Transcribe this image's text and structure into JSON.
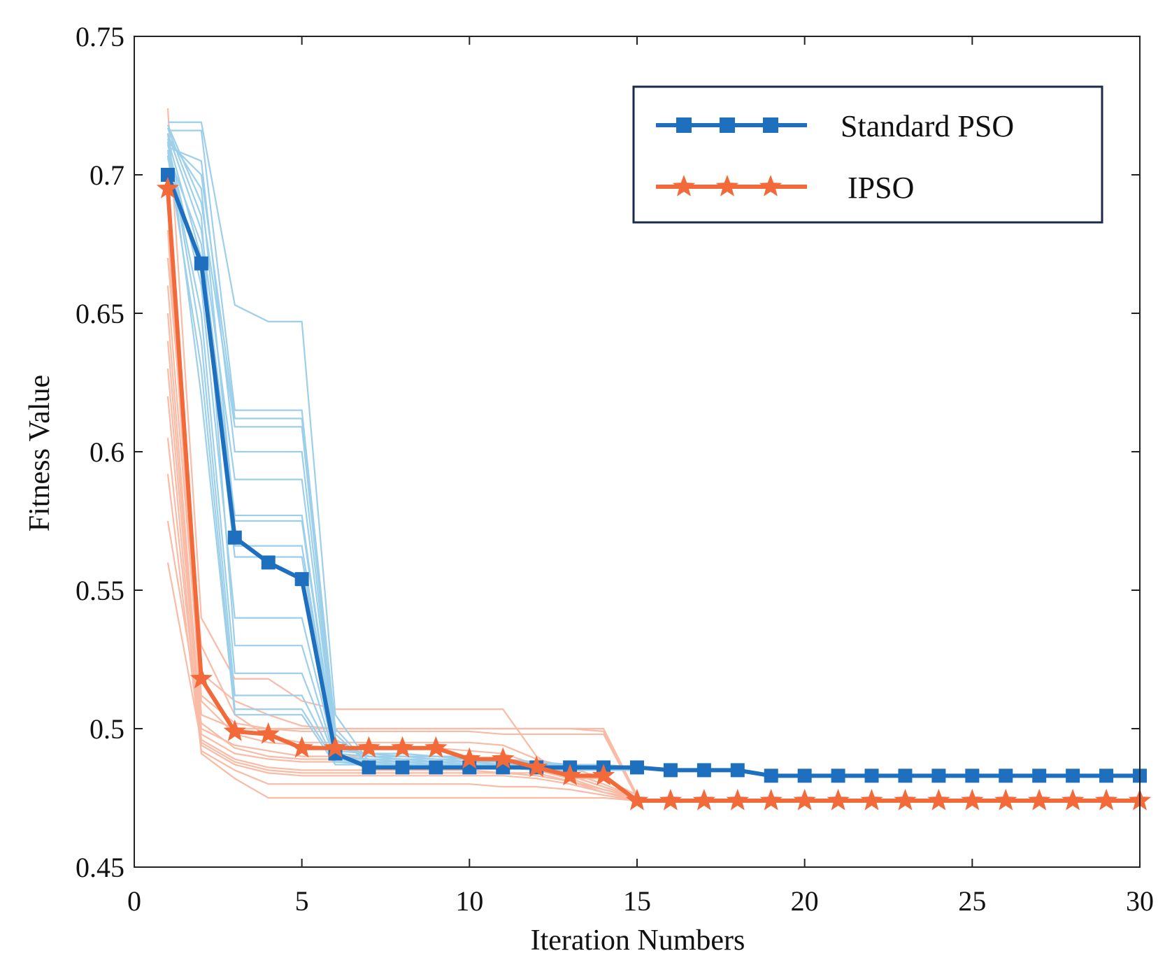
{
  "chart_data": {
    "type": "line",
    "title": "",
    "xlabel": "Iteration Numbers",
    "ylabel": "Fitness Value",
    "xlim": [
      0,
      30
    ],
    "ylim": [
      0.45,
      0.75
    ],
    "xticks": [
      "0",
      "5",
      "10",
      "15",
      "20",
      "25",
      "30"
    ],
    "xtick_values": [
      0,
      5,
      10,
      15,
      20,
      25,
      30
    ],
    "yticks": [
      "0.45",
      "0.5",
      "0.55",
      "0.6",
      "0.65",
      "0.7",
      "0.75"
    ],
    "ytick_values": [
      0.45,
      0.5,
      0.55,
      0.6,
      0.65,
      0.7,
      0.75
    ],
    "grid": false,
    "legend_position": "top-right",
    "x": [
      1,
      2,
      3,
      4,
      5,
      6,
      7,
      8,
      9,
      10,
      11,
      12,
      13,
      14,
      15,
      16,
      17,
      18,
      19,
      20,
      21,
      22,
      23,
      24,
      25,
      26,
      27,
      28,
      29,
      30
    ],
    "series": [
      {
        "name": "Standard PSO",
        "color": "#1f6fbf",
        "marker": "square",
        "values": [
          0.7,
          0.668,
          0.569,
          0.56,
          0.554,
          0.491,
          0.486,
          0.486,
          0.486,
          0.486,
          0.486,
          0.486,
          0.486,
          0.486,
          0.486,
          0.485,
          0.485,
          0.485,
          0.483,
          0.483,
          0.483,
          0.483,
          0.483,
          0.483,
          0.483,
          0.483,
          0.483,
          0.483,
          0.483,
          0.483
        ]
      },
      {
        "name": "IPSO",
        "color": "#f26a3a",
        "marker": "star",
        "values": [
          0.695,
          0.518,
          0.499,
          0.498,
          0.493,
          0.493,
          0.493,
          0.493,
          0.493,
          0.489,
          0.489,
          0.486,
          0.483,
          0.483,
          0.474,
          0.474,
          0.474,
          0.474,
          0.474,
          0.474,
          0.474,
          0.474,
          0.474,
          0.474,
          0.474,
          0.474,
          0.474,
          0.474,
          0.474,
          0.474
        ]
      }
    ],
    "background_runs": {
      "Standard PSO": {
        "color": "#9ccfe9",
        "runs": [
          [
            0.719,
            0.719,
            0.653,
            0.647,
            0.647,
            0.505,
            0.488,
            0.488,
            0.488,
            0.488,
            0.488,
            0.487,
            0.487,
            0.486,
            0.486
          ],
          [
            0.716,
            0.716,
            0.615,
            0.615,
            0.615,
            0.5,
            0.487,
            0.487,
            0.487,
            0.487,
            0.487,
            0.486,
            0.486,
            0.485,
            0.485
          ],
          [
            0.712,
            0.7,
            0.612,
            0.612,
            0.612,
            0.498,
            0.487,
            0.487,
            0.487,
            0.487,
            0.486,
            0.486,
            0.485,
            0.485,
            0.485
          ],
          [
            0.718,
            0.69,
            0.609,
            0.609,
            0.609,
            0.496,
            0.49,
            0.49,
            0.49,
            0.49,
            0.488,
            0.488,
            0.487,
            0.487,
            0.486
          ],
          [
            0.71,
            0.705,
            0.6,
            0.6,
            0.6,
            0.494,
            0.49,
            0.49,
            0.49,
            0.489,
            0.489,
            0.487,
            0.487,
            0.486,
            0.486
          ],
          [
            0.715,
            0.68,
            0.59,
            0.59,
            0.59,
            0.493,
            0.491,
            0.491,
            0.49,
            0.49,
            0.488,
            0.488,
            0.487,
            0.486,
            0.486
          ],
          [
            0.708,
            0.675,
            0.577,
            0.577,
            0.577,
            0.492,
            0.491,
            0.49,
            0.49,
            0.489,
            0.489,
            0.488,
            0.487,
            0.486,
            0.486
          ],
          [
            0.714,
            0.695,
            0.575,
            0.575,
            0.575,
            0.491,
            0.49,
            0.49,
            0.489,
            0.489,
            0.488,
            0.487,
            0.487,
            0.486,
            0.485
          ],
          [
            0.706,
            0.665,
            0.566,
            0.566,
            0.566,
            0.491,
            0.49,
            0.489,
            0.489,
            0.488,
            0.488,
            0.487,
            0.486,
            0.486,
            0.485
          ],
          [
            0.713,
            0.67,
            0.562,
            0.562,
            0.562,
            0.49,
            0.489,
            0.489,
            0.488,
            0.488,
            0.487,
            0.487,
            0.486,
            0.486,
            0.485
          ],
          [
            0.711,
            0.66,
            0.54,
            0.54,
            0.54,
            0.49,
            0.489,
            0.489,
            0.488,
            0.488,
            0.487,
            0.486,
            0.486,
            0.485,
            0.485
          ],
          [
            0.717,
            0.685,
            0.53,
            0.53,
            0.53,
            0.489,
            0.489,
            0.488,
            0.488,
            0.487,
            0.487,
            0.486,
            0.486,
            0.485,
            0.485
          ],
          [
            0.709,
            0.65,
            0.52,
            0.52,
            0.52,
            0.489,
            0.488,
            0.488,
            0.487,
            0.487,
            0.486,
            0.486,
            0.485,
            0.485,
            0.485
          ],
          [
            0.712,
            0.64,
            0.512,
            0.512,
            0.512,
            0.488,
            0.488,
            0.487,
            0.487,
            0.487,
            0.486,
            0.486,
            0.485,
            0.485,
            0.485
          ],
          [
            0.707,
            0.63,
            0.507,
            0.507,
            0.507,
            0.488,
            0.487,
            0.487,
            0.487,
            0.486,
            0.486,
            0.486,
            0.485,
            0.485,
            0.485
          ],
          [
            0.715,
            0.62,
            0.505,
            0.505,
            0.505,
            0.487,
            0.487,
            0.487,
            0.486,
            0.486,
            0.486,
            0.485,
            0.485,
            0.485,
            0.485
          ]
        ]
      },
      "IPSO": {
        "color": "#f9bba6",
        "runs": [
          [
            0.724,
            0.54,
            0.518,
            0.518,
            0.51,
            0.507,
            0.507,
            0.507,
            0.507,
            0.507,
            0.507,
            0.49,
            0.482,
            0.482,
            0.476
          ],
          [
            0.7,
            0.52,
            0.51,
            0.505,
            0.501,
            0.5,
            0.5,
            0.5,
            0.5,
            0.5,
            0.5,
            0.5,
            0.5,
            0.5,
            0.476
          ],
          [
            0.69,
            0.512,
            0.502,
            0.5,
            0.5,
            0.5,
            0.5,
            0.5,
            0.5,
            0.5,
            0.5,
            0.5,
            0.5,
            0.499,
            0.475
          ],
          [
            0.68,
            0.505,
            0.5,
            0.5,
            0.499,
            0.499,
            0.499,
            0.499,
            0.499,
            0.499,
            0.498,
            0.498,
            0.498,
            0.498,
            0.475
          ],
          [
            0.67,
            0.53,
            0.505,
            0.497,
            0.495,
            0.495,
            0.495,
            0.495,
            0.495,
            0.495,
            0.494,
            0.489,
            0.486,
            0.482,
            0.475
          ],
          [
            0.66,
            0.51,
            0.498,
            0.495,
            0.494,
            0.493,
            0.493,
            0.493,
            0.493,
            0.492,
            0.491,
            0.487,
            0.484,
            0.48,
            0.475
          ],
          [
            0.65,
            0.5,
            0.494,
            0.492,
            0.49,
            0.49,
            0.49,
            0.49,
            0.49,
            0.489,
            0.488,
            0.486,
            0.483,
            0.479,
            0.475
          ],
          [
            0.64,
            0.498,
            0.491,
            0.489,
            0.488,
            0.488,
            0.488,
            0.488,
            0.488,
            0.487,
            0.486,
            0.485,
            0.482,
            0.478,
            0.475
          ],
          [
            0.63,
            0.496,
            0.489,
            0.486,
            0.485,
            0.485,
            0.485,
            0.485,
            0.485,
            0.485,
            0.484,
            0.484,
            0.481,
            0.477,
            0.475
          ],
          [
            0.605,
            0.494,
            0.487,
            0.484,
            0.483,
            0.483,
            0.483,
            0.483,
            0.483,
            0.483,
            0.483,
            0.482,
            0.48,
            0.477,
            0.474
          ],
          [
            0.592,
            0.492,
            0.485,
            0.48,
            0.48,
            0.48,
            0.48,
            0.48,
            0.48,
            0.48,
            0.479,
            0.479,
            0.478,
            0.476,
            0.474
          ],
          [
            0.62,
            0.491,
            0.482,
            0.475,
            0.475,
            0.475,
            0.475,
            0.475,
            0.475,
            0.475,
            0.475,
            0.475,
            0.475,
            0.475,
            0.474
          ],
          [
            0.56,
            0.495,
            0.488,
            0.485,
            0.484,
            0.484,
            0.484,
            0.484,
            0.484,
            0.484,
            0.484,
            0.483,
            0.481,
            0.478,
            0.475
          ],
          [
            0.575,
            0.502,
            0.493,
            0.49,
            0.489,
            0.489,
            0.489,
            0.489,
            0.489,
            0.489,
            0.488,
            0.486,
            0.483,
            0.479,
            0.475
          ]
        ]
      }
    }
  }
}
